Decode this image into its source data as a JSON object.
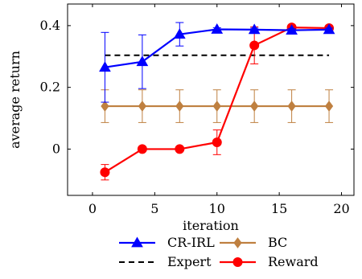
{
  "chart_data": {
    "type": "line",
    "xlabel": "iteration",
    "ylabel": "average return",
    "xlim": [
      -2,
      21
    ],
    "ylim": [
      -0.15,
      0.47
    ],
    "xticks": [
      0,
      5,
      10,
      15,
      20
    ],
    "yticks": [
      0,
      0.2,
      0.4
    ],
    "ytick_labels": [
      "0",
      "0.2",
      "0.4"
    ],
    "grid": false,
    "legend_position": "bottom",
    "series": [
      {
        "name": "CR-IRL",
        "color": "#0000ff",
        "marker": "triangle",
        "x": [
          1,
          4,
          7,
          10,
          13,
          16,
          19
        ],
        "y": [
          0.265,
          0.283,
          0.372,
          0.388,
          0.387,
          0.385,
          0.387
        ],
        "err": [
          0.113,
          0.087,
          0.038,
          0.005,
          0.005,
          0.005,
          0.005
        ]
      },
      {
        "name": "BC",
        "color": "#bf8040",
        "marker": "diamond",
        "x": [
          1,
          4,
          7,
          10,
          13,
          16,
          19
        ],
        "y": [
          0.139,
          0.139,
          0.139,
          0.139,
          0.139,
          0.139,
          0.139
        ],
        "err": [
          0.053,
          0.053,
          0.053,
          0.053,
          0.053,
          0.053,
          0.053
        ]
      },
      {
        "name": "Expert",
        "color": "#000000",
        "dashed": true,
        "x": [
          1,
          19
        ],
        "y": [
          0.304,
          0.304
        ]
      },
      {
        "name": "Reward",
        "color": "#ff0000",
        "marker": "circle",
        "x": [
          1,
          4,
          7,
          10,
          13,
          16,
          19
        ],
        "y": [
          -0.075,
          0.0,
          0.0,
          0.022,
          0.336,
          0.394,
          0.392
        ],
        "err": [
          0.025,
          0.0,
          0.0,
          0.04,
          0.06,
          0.005,
          0.005
        ]
      }
    ]
  }
}
